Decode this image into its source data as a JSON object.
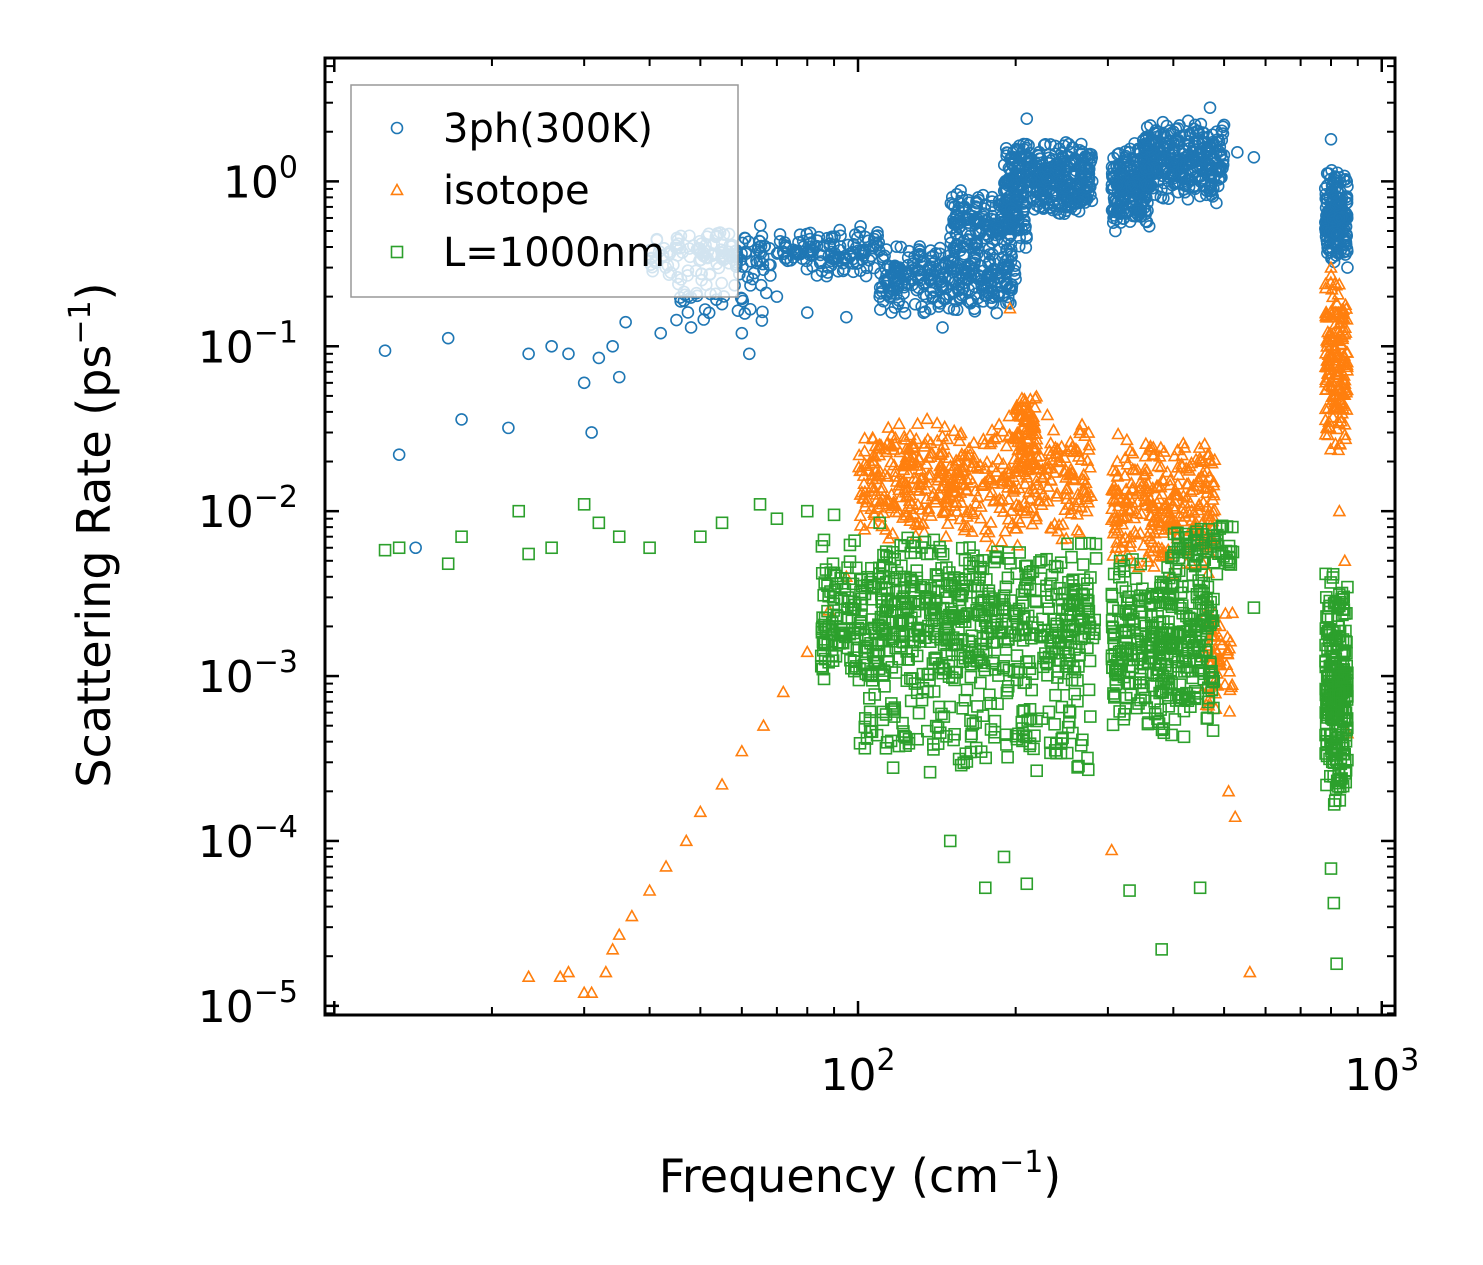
{
  "chart_data": {
    "type": "scatter",
    "title": "",
    "xlabel": "Frequency (cm",
    "xlabel_sup": "−1",
    "xlabel_end": ")",
    "ylabel": "Scattering Rate (ps",
    "ylabel_sup": "−1",
    "ylabel_end": ")",
    "xscale": "log",
    "yscale": "log",
    "xlim": [
      9.6,
      1060
    ],
    "ylim": [
      8.8e-06,
      5.6
    ],
    "x_ticks": [
      {
        "value": 100,
        "base": "10",
        "exp": "2"
      },
      {
        "value": 1000,
        "base": "10",
        "exp": "3"
      }
    ],
    "y_ticks": [
      {
        "value": 1,
        "base": "10",
        "exp": "0"
      },
      {
        "value": 0.1,
        "base": "10",
        "exp": "−1"
      },
      {
        "value": 0.01,
        "base": "10",
        "exp": "−2"
      },
      {
        "value": 0.001,
        "base": "10",
        "exp": "−3"
      },
      {
        "value": 0.0001,
        "base": "10",
        "exp": "−4"
      },
      {
        "value": 1e-05,
        "base": "10",
        "exp": "−5"
      }
    ],
    "legend_position": "top-left",
    "series": [
      {
        "name": "3ph(300K)",
        "marker": "circle",
        "color": "#1f77b4",
        "sample_points": [
          [
            12.5,
            0.094
          ],
          [
            13.3,
            0.022
          ],
          [
            14.3,
            0.006
          ],
          [
            16.5,
            0.112
          ],
          [
            17.5,
            0.036
          ],
          [
            21.5,
            0.032
          ],
          [
            23.5,
            0.09
          ],
          [
            26,
            0.1
          ],
          [
            28,
            0.09
          ],
          [
            30,
            0.06
          ],
          [
            31,
            0.03
          ],
          [
            32,
            0.085
          ],
          [
            34,
            0.1
          ],
          [
            35,
            0.065
          ],
          [
            36,
            0.14
          ],
          [
            42,
            0.12
          ],
          [
            48,
            0.13
          ],
          [
            55,
            0.18
          ],
          [
            60,
            0.12
          ],
          [
            62,
            0.09
          ],
          [
            70,
            0.2
          ],
          [
            80,
            0.16
          ],
          [
            95,
            0.15
          ],
          [
            110,
            0.2
          ],
          [
            120,
            0.3
          ],
          [
            135,
            0.2
          ],
          [
            145,
            0.13
          ],
          [
            160,
            0.3
          ],
          [
            180,
            0.5
          ],
          [
            200,
            0.6
          ],
          [
            210,
            2.4
          ],
          [
            230,
            1.2
          ],
          [
            255,
            1.5
          ],
          [
            280,
            1.0
          ],
          [
            310,
            0.5
          ],
          [
            330,
            1.5
          ],
          [
            360,
            1.2
          ],
          [
            400,
            2.0
          ],
          [
            440,
            2.2
          ],
          [
            470,
            2.8
          ],
          [
            500,
            2.2
          ],
          [
            530,
            1.5
          ],
          [
            570,
            1.4
          ],
          [
            800,
            1.8
          ],
          [
            830,
            0.6
          ],
          [
            860,
            0.3
          ]
        ],
        "clusters": [
          {
            "x": [
              40,
              110
            ],
            "y": [
              0.25,
              0.55
            ],
            "n": 260
          },
          {
            "x": [
              45,
              70
            ],
            "y": [
              0.14,
              0.3
            ],
            "n": 40
          },
          {
            "x": [
              110,
              200
            ],
            "y": [
              0.15,
              0.45
            ],
            "n": 320
          },
          {
            "x": [
              150,
              210
            ],
            "y": [
              0.35,
              0.9
            ],
            "n": 200
          },
          {
            "x": [
              190,
              280
            ],
            "y": [
              0.6,
              1.8
            ],
            "n": 380
          },
          {
            "x": [
              305,
              360
            ],
            "y": [
              0.5,
              1.8
            ],
            "n": 220
          },
          {
            "x": [
              350,
              500
            ],
            "y": [
              0.7,
              2.5
            ],
            "n": 340
          },
          {
            "x": [
              780,
              860
            ],
            "y": [
              0.3,
              1.2
            ],
            "n": 200
          }
        ]
      },
      {
        "name": "isotope",
        "marker": "triangle",
        "color": "#ff7f0e",
        "sample_points": [
          [
            23.5,
            1.5e-05
          ],
          [
            27,
            1.5e-05
          ],
          [
            28,
            1.6e-05
          ],
          [
            30,
            1.2e-05
          ],
          [
            31,
            1.2e-05
          ],
          [
            33,
            1.6e-05
          ],
          [
            34,
            2.2e-05
          ],
          [
            35,
            2.7e-05
          ],
          [
            37,
            3.5e-05
          ],
          [
            40,
            5e-05
          ],
          [
            43,
            7e-05
          ],
          [
            47,
            0.0001
          ],
          [
            50,
            0.00015
          ],
          [
            55,
            0.00022
          ],
          [
            60,
            0.00035
          ],
          [
            66,
            0.0005
          ],
          [
            72,
            0.0008
          ],
          [
            80,
            0.0014
          ],
          [
            88,
            0.0025
          ],
          [
            95,
            0.004
          ],
          [
            195,
            0.17
          ],
          [
            305,
            8.8e-05
          ],
          [
            510,
            0.0002
          ],
          [
            525,
            0.00014
          ],
          [
            560,
            1.6e-05
          ],
          [
            800,
            0.3
          ],
          [
            810,
            0.05
          ],
          [
            830,
            0.01
          ],
          [
            850,
            0.005
          ],
          [
            860,
            0.00045
          ]
        ],
        "clusters": [
          {
            "x": [
              100,
              280
            ],
            "y": [
              0.006,
              0.04
            ],
            "n": 520
          },
          {
            "x": [
              200,
              220
            ],
            "y": [
              0.015,
              0.055
            ],
            "n": 80
          },
          {
            "x": [
              305,
              480
            ],
            "y": [
              0.004,
              0.03
            ],
            "n": 300
          },
          {
            "x": [
              460,
              520
            ],
            "y": [
              0.0005,
              0.003
            ],
            "n": 60
          },
          {
            "x": [
              780,
              860
            ],
            "y": [
              0.02,
              0.3
            ],
            "n": 180
          }
        ]
      },
      {
        "name": "L=1000nm",
        "marker": "square",
        "color": "#2ca02c",
        "sample_points": [
          [
            12.5,
            0.0058
          ],
          [
            13.3,
            0.006
          ],
          [
            16.5,
            0.0048
          ],
          [
            17.5,
            0.007
          ],
          [
            22.5,
            0.01
          ],
          [
            23.5,
            0.0055
          ],
          [
            26,
            0.006
          ],
          [
            30,
            0.011
          ],
          [
            32,
            0.0085
          ],
          [
            35,
            0.007
          ],
          [
            40,
            0.006
          ],
          [
            50,
            0.007
          ],
          [
            55,
            0.0085
          ],
          [
            65,
            0.011
          ],
          [
            70,
            0.009
          ],
          [
            80,
            0.01
          ],
          [
            90,
            0.0095
          ],
          [
            110,
            0.0085
          ],
          [
            150,
            0.0001
          ],
          [
            175,
            5.2e-05
          ],
          [
            190,
            8e-05
          ],
          [
            210,
            5.5e-05
          ],
          [
            330,
            5e-05
          ],
          [
            380,
            2.2e-05
          ],
          [
            450,
            5.2e-05
          ],
          [
            570,
            0.0026
          ],
          [
            820,
            1.8e-05
          ],
          [
            810,
            4.2e-05
          ],
          [
            800,
            6.8e-05
          ]
        ],
        "clusters": [
          {
            "x": [
              85,
              285
            ],
            "y": [
              0.0006,
              0.008
            ],
            "n": 700
          },
          {
            "x": [
              100,
              280
            ],
            "y": [
              0.00025,
              0.0008
            ],
            "n": 120
          },
          {
            "x": [
              305,
              480
            ],
            "y": [
              0.0004,
              0.006
            ],
            "n": 380
          },
          {
            "x": [
              400,
              520
            ],
            "y": [
              0.004,
              0.009
            ],
            "n": 60
          },
          {
            "x": [
              780,
              860
            ],
            "y": [
              0.00015,
              0.005
            ],
            "n": 260
          }
        ]
      }
    ]
  }
}
